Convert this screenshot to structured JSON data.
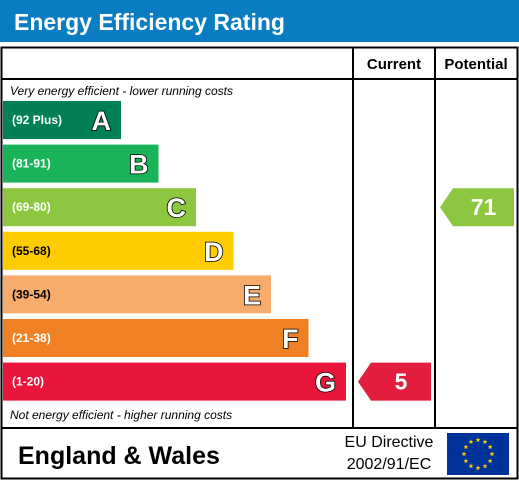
{
  "title": "Energy Efficiency Rating",
  "columns": {
    "current": "Current",
    "potential": "Potential"
  },
  "top_note": "Very energy efficient - lower running costs",
  "bottom_note": "Not energy efficient - higher running costs",
  "footer": {
    "region": "England & Wales",
    "directive_line1": "EU Directive",
    "directive_line2": "2002/91/EC"
  },
  "colors": {
    "title_bar": "#0a7dc2",
    "current_marker": "#e31d3e",
    "potential_marker": "#8dc63f"
  },
  "chart_data": {
    "type": "bar",
    "categories": [
      "A",
      "B",
      "C",
      "D",
      "E",
      "F",
      "G"
    ],
    "bands": [
      {
        "letter": "A",
        "range": "(92 Plus)",
        "min": 92,
        "max": 100,
        "color": "#008054"
      },
      {
        "letter": "B",
        "range": "(81-91)",
        "min": 81,
        "max": 91,
        "color": "#19b459"
      },
      {
        "letter": "C",
        "range": "(69-80)",
        "min": 69,
        "max": 80,
        "color": "#8dc63f"
      },
      {
        "letter": "D",
        "range": "(55-68)",
        "min": 55,
        "max": 68,
        "color": "#ffcc00"
      },
      {
        "letter": "E",
        "range": "(39-54)",
        "min": 39,
        "max": 54,
        "color": "#f7ac6b"
      },
      {
        "letter": "F",
        "range": "(21-38)",
        "min": 21,
        "max": 38,
        "color": "#ef8023"
      },
      {
        "letter": "G",
        "range": "(1-20)",
        "min": 1,
        "max": 20,
        "color": "#e9153b"
      }
    ],
    "current": {
      "value": 5,
      "band": "G",
      "label": "5"
    },
    "potential": {
      "value": 71,
      "band": "C",
      "label": "71"
    }
  }
}
